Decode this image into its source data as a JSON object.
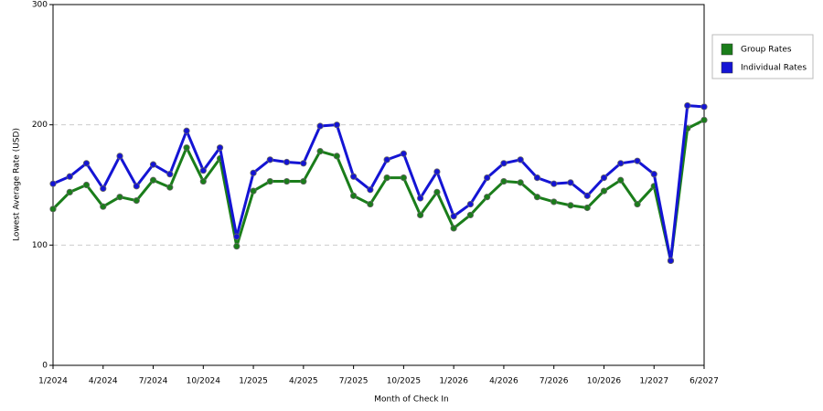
{
  "chart_data": {
    "type": "line",
    "x_label": "Month of Check In",
    "y_label": "Lowest Average Rate (USD)",
    "categories": [
      "1/2024",
      null,
      null,
      "4/2024",
      null,
      null,
      "7/2024",
      null,
      null,
      "10/2024",
      null,
      null,
      "1/2025",
      null,
      null,
      "4/2025",
      null,
      null,
      "7/2025",
      null,
      null,
      "10/2025",
      null,
      null,
      "1/2026",
      null,
      null,
      "4/2026",
      null,
      null,
      "7/2026",
      null,
      null,
      "10/2026",
      null,
      null,
      "1/2027",
      null,
      null,
      "6/2027"
    ],
    "series": [
      {
        "name": "Group Rates",
        "color": "#1a7d1a",
        "values": [
          130,
          144,
          150,
          132,
          140,
          137,
          154,
          148,
          181,
          153,
          172,
          99,
          145,
          153,
          153,
          153,
          178,
          174,
          141,
          134,
          156,
          156,
          125,
          144,
          114,
          125,
          140,
          153,
          152,
          140,
          136,
          133,
          131,
          145,
          154,
          134,
          149,
          87,
          197,
          204
        ]
      },
      {
        "name": "Individual Rates",
        "color": "#1414d4",
        "values": [
          151,
          157,
          168,
          147,
          174,
          149,
          167,
          159,
          195,
          162,
          181,
          107,
          160,
          171,
          169,
          168,
          199,
          200,
          157,
          146,
          171,
          176,
          139,
          161,
          124,
          134,
          156,
          168,
          171,
          156,
          151,
          152,
          141,
          156,
          168,
          170,
          159,
          87,
          216,
          215
        ]
      }
    ],
    "ylim": [
      0,
      300
    ],
    "yticks": [
      0,
      100,
      200,
      300
    ],
    "grid": true,
    "legend": "right"
  }
}
